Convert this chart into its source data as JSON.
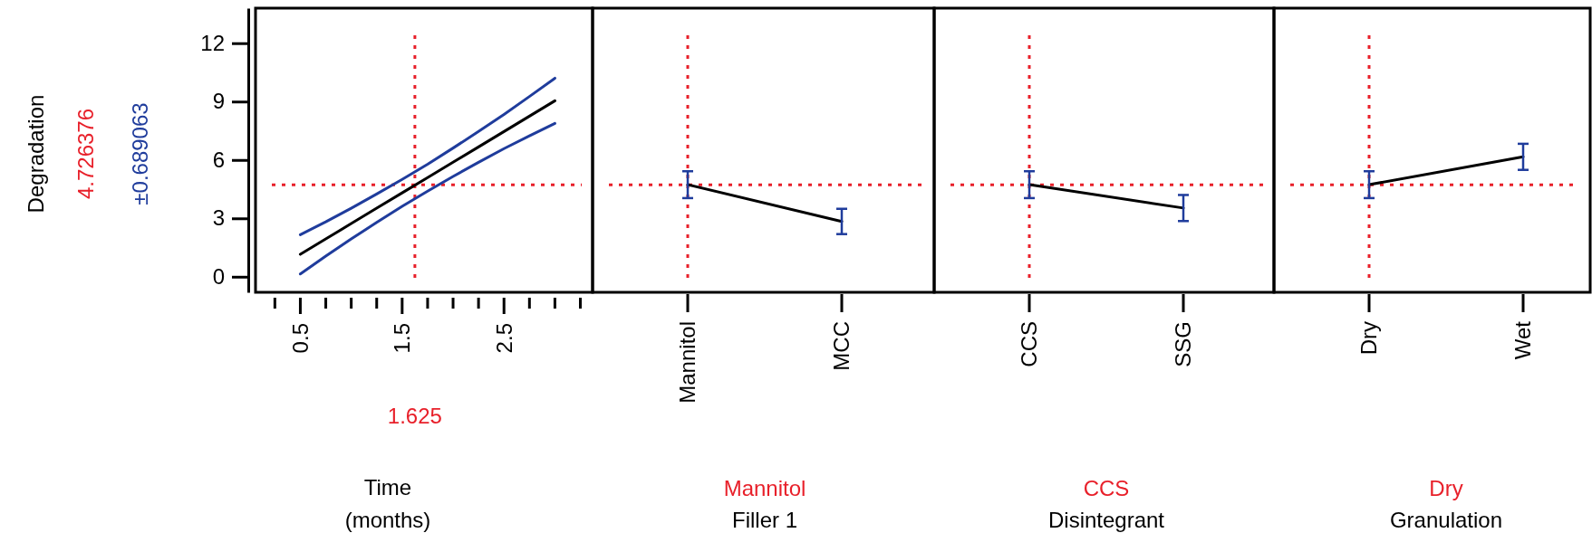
{
  "chart_data": [
    {
      "type": "line",
      "ylabel": "Degradation",
      "xlabel": "Time\n(months)",
      "annotations": [
        "±0.689063"
      ],
      "x": [
        0.5,
        0.75,
        1,
        1.25,
        1.5,
        1.75,
        2,
        2.25,
        2.5,
        2.75,
        3
      ],
      "series": [
        {
          "color": "#1f3c9c",
          "values": [
            2.16,
            2.82,
            3.52,
            4.25,
            5.0,
            5.78,
            6.61,
            7.46,
            8.34,
            9.26,
            10.2
          ]
        },
        {
          "color": "#1f3c9c",
          "values": [
            0.14,
            1.06,
            1.94,
            2.79,
            3.62,
            4.4,
            5.15,
            5.88,
            6.58,
            7.24,
            7.88
          ]
        },
        {
          "color": "#000000",
          "values": [
            1.15,
            1.94,
            2.73,
            3.52,
            4.31,
            5.09,
            5.88,
            6.67,
            7.46,
            8.25,
            9.04
          ]
        }
      ],
      "xlim": [
        0.06,
        3.37
      ],
      "xticks": [
        {
          "value": 0.25,
          "label": null
        },
        0.5,
        {
          "value": 0.75,
          "label": null
        },
        {
          "value": 1,
          "label": null
        },
        {
          "value": 1.25,
          "label": null
        },
        1.5,
        {
          "value": 1.75,
          "label": null
        },
        {
          "value": 2,
          "label": null
        },
        {
          "value": 2.25,
          "label": null
        },
        2.5,
        {
          "value": 2.75,
          "label": null
        },
        {
          "value": 3,
          "label": null
        },
        {
          "value": 3.25,
          "label": null
        }
      ],
      "ylim": [
        -0.8,
        13.8
      ],
      "yticks": [
        0,
        3,
        6,
        9,
        12
      ],
      "ref_lines": [
        {
          "axis": "y",
          "value": 4.726376,
          "label": "4.726376",
          "color": "#e8202a",
          "line_style": "dotted"
        },
        {
          "axis": "x",
          "value": 1.625,
          "label": "1.625",
          "color": "#e8202a",
          "line_style": "dotted"
        }
      ]
    },
    {
      "type": "line",
      "xlabel": "Filler 1",
      "categories": [
        "Mannitol",
        "MCC"
      ],
      "ylim": [
        -0.8,
        13.8
      ],
      "tick_labels": "x",
      "series": [
        {
          "color": "#000000",
          "values": [
            4.73,
            2.84
          ],
          "errors": [
            0.69,
            0.65
          ]
        }
      ],
      "ref_lines": [
        {
          "axis": "y",
          "value": 4.726376,
          "color": "#e8202a",
          "line_style": "dotted"
        },
        {
          "axis": "x",
          "value": "Mannitol",
          "label": "Mannitol",
          "color": "#e8202a",
          "line_style": "dotted"
        }
      ]
    },
    {
      "type": "line",
      "xlabel": "Disintegrant",
      "categories": [
        "CCS",
        "SSG"
      ],
      "ylim": [
        -0.8,
        13.8
      ],
      "tick_labels": "x",
      "series": [
        {
          "color": "#000000",
          "values": [
            4.73,
            3.53
          ],
          "errors": [
            0.69,
            0.67
          ]
        }
      ],
      "ref_lines": [
        {
          "axis": "y",
          "value": 4.726376,
          "color": "#e8202a",
          "line_style": "dotted"
        },
        {
          "axis": "x",
          "value": "CCS",
          "label": "CCS",
          "color": "#e8202a",
          "line_style": "dotted"
        }
      ]
    },
    {
      "type": "line",
      "xlabel": "Granulation",
      "categories": [
        "Dry",
        "Wet"
      ],
      "ylim": [
        -0.8,
        13.8
      ],
      "tick_labels": "x",
      "series": [
        {
          "color": "#000000",
          "values": [
            4.73,
            6.16
          ],
          "errors": [
            0.69,
            0.67
          ]
        }
      ],
      "ref_lines": [
        {
          "axis": "y",
          "value": 4.726376,
          "color": "#e8202a",
          "line_style": "dotted"
        },
        {
          "axis": "x",
          "value": "Dry",
          "label": "Dry",
          "color": "#e8202a",
          "line_style": "dotted"
        }
      ]
    }
  ]
}
